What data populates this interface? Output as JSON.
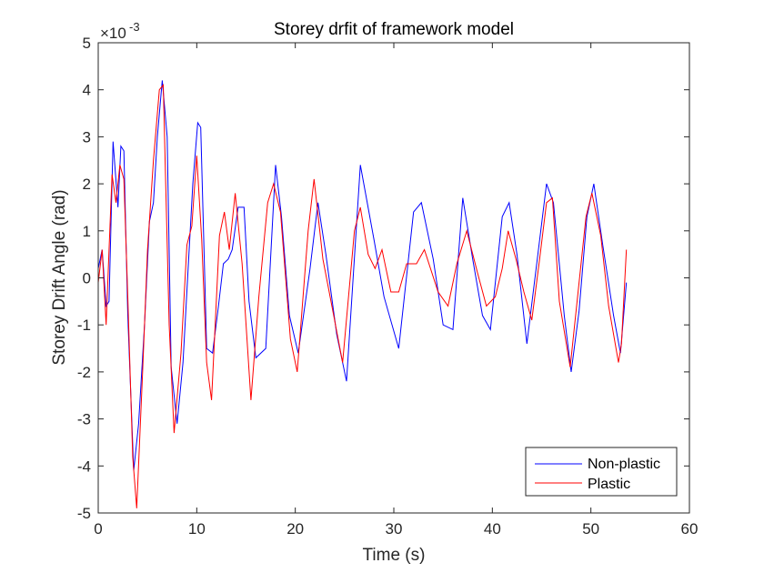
{
  "chart_data": {
    "type": "line",
    "title": "Storey drfit of framework model",
    "xlabel": "Time (s)",
    "ylabel": "Storey Drift Angle (rad)",
    "y_exponent_label": "×10",
    "y_exponent_power": "-3",
    "xlim": [
      0,
      60
    ],
    "ylim": [
      -0.005,
      0.005
    ],
    "x_ticks": [
      "0",
      "10",
      "20",
      "30",
      "40",
      "50",
      "60"
    ],
    "y_ticks": [
      "-5",
      "-4",
      "-3",
      "-2",
      "-1",
      "0",
      "1",
      "2",
      "3",
      "4",
      "5"
    ],
    "grid": false,
    "legend_position": "bottom-right",
    "series": [
      {
        "name": "Non-plastic",
        "color": "#0000ff",
        "points": [
          [
            0,
            0.0002
          ],
          [
            0.4,
            0.0006
          ],
          [
            0.8,
            -0.0006
          ],
          [
            1.1,
            -0.0005
          ],
          [
            1.5,
            0.0029
          ],
          [
            2.0,
            0.0015
          ],
          [
            2.3,
            0.0028
          ],
          [
            2.6,
            0.0027
          ],
          [
            3.0,
            -0.0008
          ],
          [
            3.6,
            -0.0041
          ],
          [
            4.1,
            -0.0031
          ],
          [
            4.7,
            -0.001
          ],
          [
            5.2,
            0.0012
          ],
          [
            5.6,
            0.0016
          ],
          [
            6.0,
            0.003
          ],
          [
            6.5,
            0.0042
          ],
          [
            7.0,
            0.003
          ],
          [
            7.4,
            -0.0019
          ],
          [
            8.0,
            -0.0031
          ],
          [
            8.6,
            -0.0018
          ],
          [
            9.2,
            0.0005
          ],
          [
            9.6,
            0.002
          ],
          [
            10.1,
            0.0033
          ],
          [
            10.4,
            0.0032
          ],
          [
            11.0,
            -0.0015
          ],
          [
            11.6,
            -0.0016
          ],
          [
            12.2,
            -0.0006
          ],
          [
            12.7,
            0.0003
          ],
          [
            13.2,
            0.0004
          ],
          [
            13.6,
            0.0006
          ],
          [
            14.2,
            0.0015
          ],
          [
            14.8,
            0.0015
          ],
          [
            15.3,
            -0.0005
          ],
          [
            16.0,
            -0.0017
          ],
          [
            17.0,
            -0.0015
          ],
          [
            18.0,
            0.0024
          ],
          [
            18.6,
            0.0013
          ],
          [
            19.4,
            -0.0008
          ],
          [
            20.3,
            -0.0016
          ],
          [
            21.5,
            0.0002
          ],
          [
            22.3,
            0.0016
          ],
          [
            23.1,
            0.0005
          ],
          [
            24.2,
            -0.0012
          ],
          [
            25.2,
            -0.0022
          ],
          [
            26.6,
            0.0024
          ],
          [
            28.0,
            0.0008
          ],
          [
            29.0,
            -0.0004
          ],
          [
            30.5,
            -0.0015
          ],
          [
            32.0,
            0.0014
          ],
          [
            32.8,
            0.0016
          ],
          [
            34.0,
            0.0004
          ],
          [
            35.0,
            -0.001
          ],
          [
            36.0,
            -0.0011
          ],
          [
            37.0,
            0.0017
          ],
          [
            38.0,
            0.0004
          ],
          [
            39.0,
            -0.0008
          ],
          [
            39.8,
            -0.0011
          ],
          [
            41.0,
            0.0013
          ],
          [
            41.7,
            0.0016
          ],
          [
            42.5,
            0.0005
          ],
          [
            43.5,
            -0.0014
          ],
          [
            44.5,
            0.0003
          ],
          [
            45.5,
            0.002
          ],
          [
            46.2,
            0.0016
          ],
          [
            47.3,
            -0.0008
          ],
          [
            48.0,
            -0.002
          ],
          [
            48.8,
            -0.0007
          ],
          [
            49.6,
            0.0013
          ],
          [
            50.3,
            0.002
          ],
          [
            51.2,
            0.0007
          ],
          [
            52.3,
            -0.0008
          ],
          [
            53.0,
            -0.0016
          ],
          [
            53.6,
            -0.0001
          ]
        ]
      },
      {
        "name": "Plastic",
        "color": "#ff0000",
        "points": [
          [
            0,
            -0.0001
          ],
          [
            0.4,
            0.0006
          ],
          [
            0.8,
            -0.001
          ],
          [
            1.1,
            0.0006
          ],
          [
            1.4,
            0.0022
          ],
          [
            1.8,
            0.0016
          ],
          [
            2.2,
            0.0024
          ],
          [
            2.6,
            0.0021
          ],
          [
            3.0,
            -0.0004
          ],
          [
            3.5,
            -0.0038
          ],
          [
            3.9,
            -0.0049
          ],
          [
            4.5,
            -0.002
          ],
          [
            5.0,
            0.0006
          ],
          [
            5.6,
            0.0025
          ],
          [
            6.2,
            0.004
          ],
          [
            6.6,
            0.0041
          ],
          [
            7.2,
            -0.001
          ],
          [
            7.7,
            -0.0033
          ],
          [
            8.4,
            -0.0016
          ],
          [
            9.0,
            0.0007
          ],
          [
            9.5,
            0.0011
          ],
          [
            10.0,
            0.0026
          ],
          [
            10.5,
            0.0008
          ],
          [
            11.0,
            -0.0018
          ],
          [
            11.5,
            -0.0026
          ],
          [
            12.3,
            0.0009
          ],
          [
            12.8,
            0.0014
          ],
          [
            13.3,
            0.0006
          ],
          [
            13.9,
            0.0018
          ],
          [
            14.6,
            0.0003
          ],
          [
            15.5,
            -0.0026
          ],
          [
            16.3,
            -0.0004
          ],
          [
            17.2,
            0.0016
          ],
          [
            17.8,
            0.002
          ],
          [
            18.5,
            0.0014
          ],
          [
            19.5,
            -0.0013
          ],
          [
            20.2,
            -0.002
          ],
          [
            21.3,
            0.001
          ],
          [
            21.9,
            0.0021
          ],
          [
            22.8,
            0.0004
          ],
          [
            23.9,
            -0.0008
          ],
          [
            24.8,
            -0.0018
          ],
          [
            26.0,
            0.001
          ],
          [
            26.6,
            0.0015
          ],
          [
            27.4,
            0.0005
          ],
          [
            28.1,
            0.0002
          ],
          [
            28.8,
            0.0006
          ],
          [
            29.7,
            -0.0003
          ],
          [
            30.5,
            -0.0003
          ],
          [
            31.3,
            0.0003
          ],
          [
            32.3,
            0.0003
          ],
          [
            33.1,
            0.0006
          ],
          [
            34.5,
            -0.0003
          ],
          [
            35.5,
            -0.0006
          ],
          [
            36.4,
            0.0003
          ],
          [
            37.4,
            0.001
          ],
          [
            38.5,
            0.0001
          ],
          [
            39.4,
            -0.0006
          ],
          [
            40.3,
            -0.0004
          ],
          [
            41.0,
            0.0002
          ],
          [
            41.6,
            0.001
          ],
          [
            42.4,
            0.0004
          ],
          [
            43.2,
            -0.0003
          ],
          [
            44.0,
            -0.0009
          ],
          [
            44.8,
            0.0004
          ],
          [
            45.5,
            0.0016
          ],
          [
            46.1,
            0.0017
          ],
          [
            46.8,
            -0.0005
          ],
          [
            47.9,
            -0.0019
          ],
          [
            48.6,
            -0.0005
          ],
          [
            49.5,
            0.0013
          ],
          [
            50.1,
            0.0018
          ],
          [
            51.0,
            0.0009
          ],
          [
            51.8,
            -0.0006
          ],
          [
            52.8,
            -0.0018
          ],
          [
            53.1,
            -0.0014
          ],
          [
            53.6,
            0.0006
          ]
        ]
      }
    ]
  }
}
